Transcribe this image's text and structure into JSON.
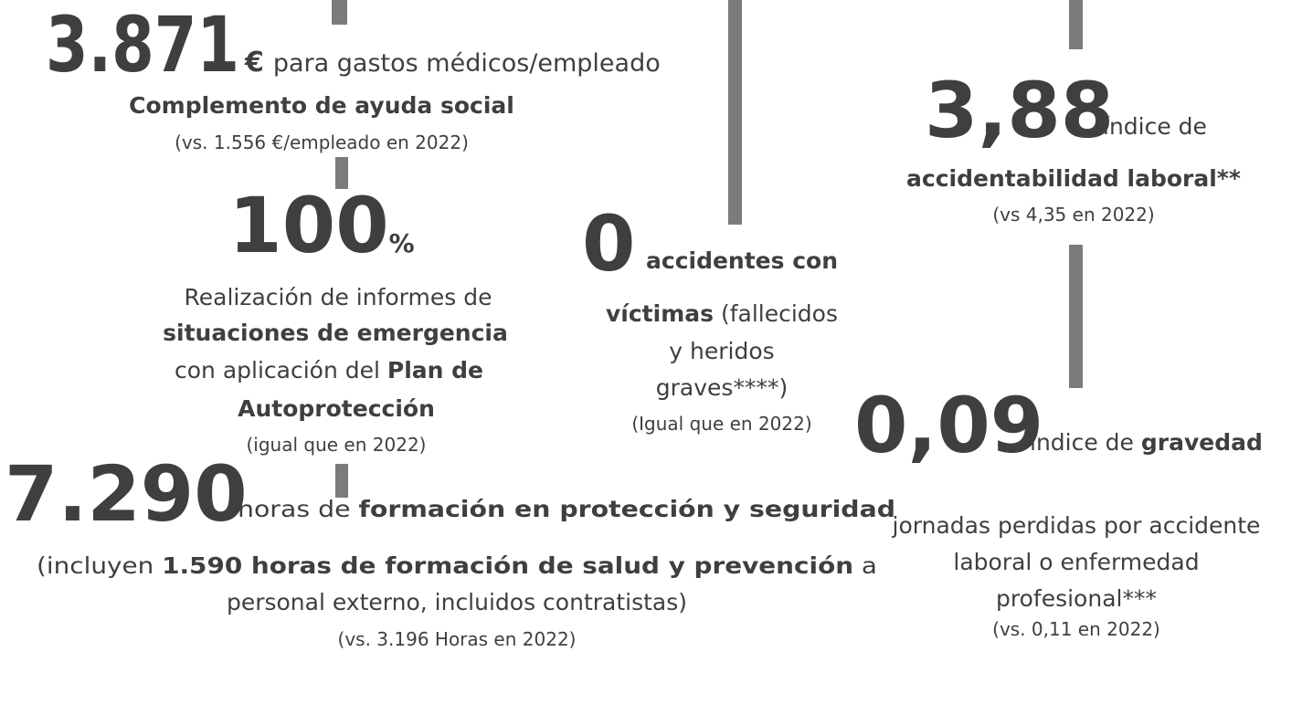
{
  "blocks": {
    "social": {
      "figure": "3.871",
      "unit": "€",
      "tail": "para gastos médicos/empleado",
      "line": "Complemento de ayuda social",
      "note": "(vs. 1.556 €/empleado en 2022)"
    },
    "reports": {
      "figure": "100",
      "unit": "%",
      "lines": [
        [
          "Realización de informes de"
        ],
        [
          "situaciones de emergencia"
        ],
        [
          "con aplicación del ",
          "Plan de"
        ],
        [
          "Autoprotección"
        ]
      ],
      "note": "(igual que en 2022)"
    },
    "accidents": {
      "figure": "0",
      "tail": "accidentes con",
      "lines": [
        [
          "víctimas",
          " (fallecidos"
        ],
        [
          "y heridos"
        ],
        [
          "graves****)"
        ]
      ],
      "note": "(Igual que en 2022)"
    },
    "rate": {
      "figure": "3,88",
      "tail": "índice de",
      "line": "accidentabilidad laboral**",
      "note": "(vs 4,35 en 2022)"
    },
    "severity": {
      "figure": "0,09",
      "tail": [
        "índice de ",
        "gravedad"
      ],
      "lines": [
        "jornadas perdidas por accidente",
        "laboral o enfermedad",
        "profesional***"
      ],
      "note": "(vs. 0,11 en 2022)"
    },
    "training": {
      "figure": "7.290",
      "tail": [
        "horas de ",
        "formación en protección y seguridad"
      ],
      "lines": [
        [
          "(incluyen ",
          "1.590 horas de formación de salud y prevención",
          " a"
        ],
        [
          "personal externo, incluidos contratistas)"
        ]
      ],
      "note": "(vs. 3.196 Horas en 2022)"
    }
  }
}
